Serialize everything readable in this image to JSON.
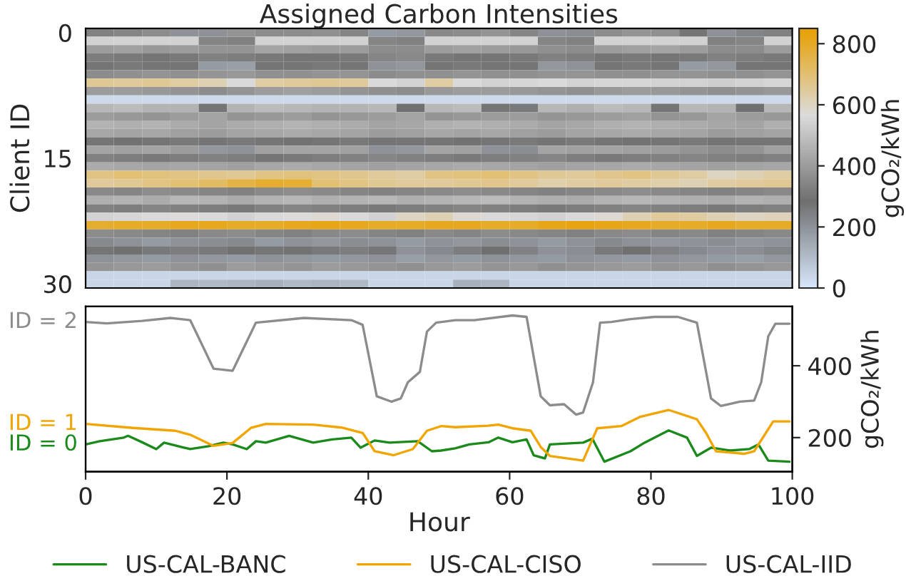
{
  "chart_data": [
    {
      "type": "heatmap",
      "title": "Assigned Carbon Intensities",
      "ylabel": "Client ID",
      "clabel": "gCO₂/kWh",
      "tick_labels": "y",
      "categories": [
        null,
        null,
        null,
        null,
        null,
        null,
        null,
        null,
        null,
        null,
        null,
        null,
        null,
        null,
        null,
        null,
        null,
        null,
        null,
        null,
        null,
        null,
        null,
        null,
        null
      ],
      "y_categories": [
        "0",
        null,
        null,
        null,
        null,
        null,
        null,
        null,
        null,
        null,
        null,
        null,
        null,
        null,
        null,
        "15",
        null,
        null,
        null,
        null,
        null,
        null,
        null,
        null,
        null,
        null,
        null,
        null,
        null,
        null,
        "30"
      ],
      "colors": [
        "#d7e7fb",
        "#6f6f6f",
        "#dcdcdc",
        "#e8a000"
      ],
      "clim": [
        0,
        850
      ],
      "cticks": [
        0,
        200,
        400,
        600,
        800
      ],
      "cells": [
        [
          330,
          340,
          360,
          200,
          200,
          380,
          360,
          360,
          370,
          340,
          180,
          190,
          350,
          360,
          380,
          340,
          200,
          210,
          360,
          380,
          370,
          300,
          200,
          230,
          330
        ],
        [
          540,
          540,
          540,
          540,
          340,
          330,
          540,
          540,
          540,
          540,
          340,
          330,
          540,
          540,
          540,
          540,
          340,
          330,
          540,
          540,
          540,
          540,
          330,
          340,
          540
        ],
        [
          400,
          410,
          390,
          400,
          380,
          380,
          420,
          410,
          400,
          400,
          360,
          360,
          400,
          410,
          400,
          390,
          370,
          360,
          400,
          410,
          420,
          400,
          360,
          360,
          400
        ],
        [
          320,
          310,
          300,
          310,
          330,
          320,
          310,
          300,
          300,
          310,
          340,
          350,
          310,
          300,
          300,
          310,
          330,
          320,
          300,
          310,
          300,
          310,
          330,
          320,
          310
        ],
        [
          300,
          310,
          300,
          300,
          180,
          170,
          300,
          300,
          310,
          300,
          200,
          190,
          300,
          310,
          300,
          300,
          190,
          200,
          300,
          310,
          300,
          180,
          190,
          300,
          300
        ],
        [
          360,
          370,
          380,
          370,
          380,
          390,
          370,
          370,
          380,
          380,
          360,
          370,
          370,
          380,
          370,
          370,
          380,
          380,
          370,
          370,
          380,
          380,
          370,
          370,
          380
        ],
        [
          660,
          650,
          660,
          640,
          620,
          560,
          640,
          650,
          660,
          650,
          560,
          540,
          640,
          560,
          540,
          550,
          560,
          540,
          550,
          550,
          540,
          540,
          530,
          540,
          550
        ],
        [
          400,
          400,
          390,
          380,
          360,
          380,
          400,
          410,
          400,
          380,
          370,
          360,
          390,
          400,
          400,
          390,
          380,
          370,
          390,
          400,
          390,
          380,
          370,
          380,
          390
        ],
        [
          30,
          30,
          30,
          30,
          30,
          30,
          30,
          30,
          30,
          30,
          30,
          30,
          30,
          30,
          30,
          30,
          30,
          30,
          30,
          30,
          30,
          30,
          30,
          30,
          30
        ],
        [
          470,
          480,
          460,
          460,
          300,
          460,
          480,
          470,
          460,
          460,
          470,
          280,
          470,
          480,
          300,
          260,
          470,
          450,
          480,
          470,
          300,
          470,
          460,
          280,
          470
        ],
        [
          400,
          390,
          380,
          400,
          420,
          380,
          390,
          400,
          380,
          390,
          400,
          420,
          380,
          390,
          400,
          400,
          380,
          390,
          400,
          410,
          380,
          390,
          420,
          400,
          390
        ],
        [
          460,
          450,
          460,
          440,
          420,
          440,
          450,
          460,
          450,
          440,
          420,
          430,
          450,
          460,
          450,
          440,
          420,
          430,
          450,
          460,
          450,
          440,
          430,
          420,
          450
        ],
        [
          430,
          420,
          430,
          410,
          400,
          420,
          430,
          440,
          430,
          420,
          400,
          410,
          430,
          420,
          430,
          410,
          400,
          420,
          430,
          440,
          430,
          420,
          400,
          410,
          420
        ],
        [
          300,
          290,
          300,
          310,
          300,
          310,
          300,
          290,
          300,
          310,
          300,
          300,
          300,
          290,
          300,
          310,
          300,
          310,
          300,
          290,
          300,
          310,
          300,
          300,
          300
        ],
        [
          420,
          410,
          420,
          400,
          190,
          200,
          410,
          420,
          420,
          410,
          200,
          190,
          420,
          410,
          200,
          210,
          420,
          410,
          420,
          410,
          400,
          380,
          360,
          380,
          410
        ],
        [
          330,
          320,
          310,
          320,
          330,
          320,
          300,
          310,
          320,
          330,
          340,
          330,
          320,
          310,
          320,
          330,
          340,
          320,
          310,
          320,
          330,
          340,
          330,
          320,
          330
        ],
        [
          440,
          430,
          420,
          430,
          420,
          410,
          430,
          440,
          430,
          420,
          410,
          420,
          430,
          440,
          430,
          420,
          410,
          420,
          430,
          440,
          430,
          420,
          410,
          420,
          430
        ],
        [
          680,
          700,
          690,
          680,
          670,
          660,
          680,
          690,
          680,
          670,
          650,
          640,
          680,
          690,
          700,
          680,
          660,
          650,
          670,
          680,
          660,
          640,
          600,
          620,
          640
        ],
        [
          650,
          660,
          680,
          700,
          720,
          760,
          790,
          780,
          700,
          680,
          660,
          650,
          650,
          660,
          670,
          650,
          630,
          640,
          650,
          640,
          630,
          620,
          640,
          650,
          660
        ],
        [
          350,
          340,
          360,
          350,
          340,
          330,
          350,
          360,
          350,
          340,
          330,
          340,
          350,
          360,
          350,
          340,
          330,
          340,
          350,
          360,
          350,
          340,
          330,
          340,
          350
        ],
        [
          450,
          460,
          440,
          470,
          460,
          440,
          460,
          470,
          450,
          460,
          470,
          450,
          460,
          470,
          480,
          460,
          450,
          440,
          460,
          470,
          460,
          450,
          440,
          460,
          450
        ],
        [
          330,
          320,
          340,
          330,
          320,
          310,
          330,
          340,
          330,
          320,
          310,
          320,
          330,
          340,
          330,
          320,
          310,
          320,
          330,
          340,
          330,
          320,
          310,
          320,
          330
        ],
        [
          540,
          550,
          560,
          570,
          560,
          540,
          560,
          570,
          580,
          560,
          540,
          600,
          620,
          580,
          560,
          550,
          540,
          560,
          580,
          620,
          650,
          640,
          620,
          600,
          610
        ],
        [
          790,
          800,
          800,
          810,
          810,
          800,
          800,
          810,
          820,
          810,
          800,
          800,
          810,
          810,
          800,
          800,
          820,
          830,
          820,
          810,
          800,
          800,
          810,
          800,
          800
        ],
        [
          360,
          350,
          340,
          330,
          350,
          360,
          340,
          330,
          350,
          360,
          340,
          330,
          350,
          340,
          360,
          350,
          340,
          330,
          350,
          360,
          340,
          350,
          330,
          340,
          350
        ],
        [
          220,
          200,
          180,
          200,
          210,
          220,
          180,
          200,
          190,
          210,
          200,
          180,
          200,
          190,
          210,
          200,
          180,
          200,
          220,
          200,
          190,
          200,
          210,
          190,
          200
        ],
        [
          300,
          280,
          260,
          250,
          260,
          280,
          300,
          290,
          260,
          250,
          270,
          200,
          220,
          250,
          280,
          240,
          200,
          210,
          260,
          280,
          240,
          220,
          200,
          210,
          230
        ],
        [
          200,
          190,
          180,
          200,
          190,
          180,
          200,
          190,
          180,
          190,
          200,
          170,
          190,
          180,
          200,
          190,
          180,
          200,
          190,
          180,
          200,
          190,
          180,
          170,
          190
        ],
        [
          380,
          390,
          400,
          380,
          370,
          400,
          390,
          380,
          400,
          390,
          380,
          370,
          390,
          400,
          380,
          390,
          370,
          380,
          390,
          400,
          380,
          390,
          370,
          380,
          390
        ],
        [
          40,
          40,
          40,
          40,
          40,
          40,
          40,
          40,
          40,
          40,
          40,
          40,
          40,
          40,
          40,
          40,
          40,
          40,
          40,
          40,
          40,
          40,
          40,
          40,
          40
        ],
        [
          40,
          40,
          40,
          120,
          110,
          120,
          130,
          110,
          120,
          110,
          40,
          40,
          40,
          130,
          120,
          40,
          40,
          40,
          40,
          40,
          40,
          40,
          40,
          40,
          40
        ]
      ]
    },
    {
      "type": "line",
      "xlabel": "Hour",
      "y2label": "gCO₂/kWh",
      "xlim": [
        0,
        100
      ],
      "xticks": [
        0,
        20,
        40,
        60,
        80,
        100
      ],
      "y2lim": [
        105,
        565
      ],
      "y2ticks": [
        200,
        400
      ],
      "grid": false,
      "legend": "bottom",
      "annotations": [
        "ID = 2",
        "ID = 1",
        "ID = 0"
      ],
      "series": [
        {
          "name": "US-CAL-BANC",
          "color": "#1a8a1a",
          "axis": "y2",
          "x": [
            0,
            2,
            5.4,
            6,
            8,
            10,
            11.1,
            13.1,
            14.8,
            17.4,
            19.5,
            20.8,
            22.8,
            24.1,
            25.5,
            28.8,
            32.2,
            34.9,
            37.6,
            38.9,
            40.9,
            43,
            47,
            49,
            50.3,
            52.3,
            54.3,
            57,
            58.4,
            60.4,
            62.4,
            63.4,
            65,
            65.7,
            70.4,
            71.7,
            73.4,
            77.1,
            79.1,
            82.5,
            85.1,
            86.5,
            88.5,
            91.2,
            93.9,
            95.2,
            96.6,
            99.6
          ],
          "values": [
            181,
            190,
            200,
            205,
            187,
            168,
            186,
            176,
            168,
            176,
            186,
            181,
            168,
            190,
            186,
            205,
            186,
            195,
            200,
            172,
            192,
            186,
            190,
            162,
            164,
            170,
            181,
            187,
            200,
            187,
            195,
            151,
            142,
            181,
            186,
            197,
            133,
            162,
            186,
            220,
            200,
            149,
            172,
            164,
            168,
            181,
            136,
            133
          ]
        },
        {
          "name": "US-CAL-CISO",
          "color": "#f0a500",
          "axis": "y2",
          "x": [
            0,
            6.7,
            12.7,
            14.8,
            18.1,
            20.8,
            23.4,
            25.5,
            32.2,
            36.2,
            39.2,
            40.9,
            43.6,
            46.3,
            48.3,
            50.3,
            52.3,
            57,
            58.4,
            60.4,
            63,
            64.4,
            65.7,
            70.4,
            72.4,
            75.8,
            78.5,
            82.5,
            86.5,
            87.8,
            89.2,
            93.2,
            94.6,
            97.3,
            99.6
          ],
          "values": [
            238,
            227,
            219,
            208,
            177,
            185,
            227,
            238,
            236,
            228,
            213,
            162,
            151,
            168,
            219,
            232,
            229,
            233,
            236,
            226,
            219,
            174,
            149,
            136,
            226,
            232,
            258,
            277,
            251,
            213,
            162,
            155,
            162,
            245,
            245
          ]
        },
        {
          "name": "US-CAL-IID",
          "color": "#8c8c8c",
          "axis": "y2",
          "x": [
            0,
            3,
            8,
            12,
            14.8,
            18.1,
            20.8,
            24.1,
            30.9,
            37.6,
            39.2,
            41.2,
            43.3,
            44.6,
            45.6,
            47.3,
            48.3,
            49.6,
            52.3,
            55,
            60.4,
            62.4,
            64.4,
            65.7,
            67.7,
            69.4,
            70.4,
            71.8,
            72.8,
            74.4,
            77.1,
            80.5,
            83.8,
            86.5,
            88.5,
            89.9,
            92.6,
            94.6,
            95.6,
            96.6,
            97.6,
            99.6
          ],
          "values": [
            522,
            518,
            525,
            533,
            527,
            392,
            386,
            520,
            533,
            527,
            514,
            315,
            300,
            309,
            354,
            383,
            495,
            520,
            527,
            527,
            540,
            536,
            315,
            290,
            293,
            264,
            270,
            354,
            520,
            522,
            530,
            536,
            536,
            520,
            309,
            288,
            300,
            303,
            354,
            482,
            517,
            517
          ]
        }
      ]
    }
  ]
}
